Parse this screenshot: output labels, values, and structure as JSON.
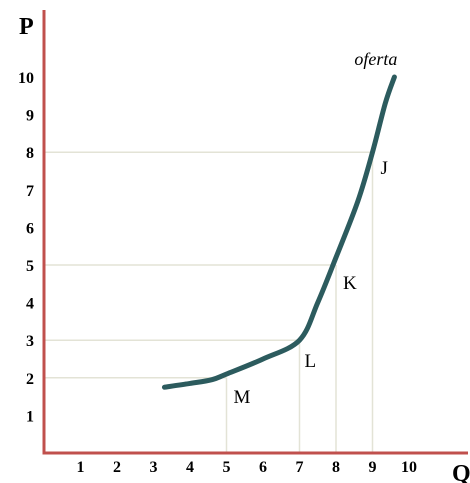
{
  "chart_data": {
    "type": "line",
    "xlabel": "Q",
    "ylabel": "P",
    "xlim": [
      0,
      10.6
    ],
    "ylim": [
      0,
      11.4
    ],
    "x_ticks": [
      "1",
      "2",
      "3",
      "4",
      "5",
      "6",
      "7",
      "8",
      "9",
      "10"
    ],
    "y_ticks": [
      "1",
      "2",
      "3",
      "4",
      "5",
      "6",
      "7",
      "8",
      "9",
      "10"
    ],
    "grid": "reference lines to labeled points only",
    "series": [
      {
        "name": "oferta",
        "color": "#2c5b5e",
        "x": [
          3.3,
          4.0,
          4.6,
          5.0,
          6.0,
          7.0,
          7.5,
          8.0,
          8.6,
          9.0,
          9.35,
          9.6
        ],
        "y": [
          1.75,
          1.85,
          1.95,
          2.1,
          2.5,
          3.0,
          4.0,
          5.2,
          6.7,
          8.0,
          9.3,
          10.0
        ]
      }
    ],
    "points": [
      {
        "label": "J",
        "x": 9,
        "y": 8
      },
      {
        "label": "K",
        "x": 8,
        "y": 5
      },
      {
        "label": "L",
        "x": 7,
        "y": 3
      },
      {
        "label": "M",
        "x": 5,
        "y": 2
      }
    ],
    "colors": {
      "axis": "#c0504d",
      "reference_lines": "#e3e3d6",
      "curve": "#2c5b5e"
    }
  }
}
